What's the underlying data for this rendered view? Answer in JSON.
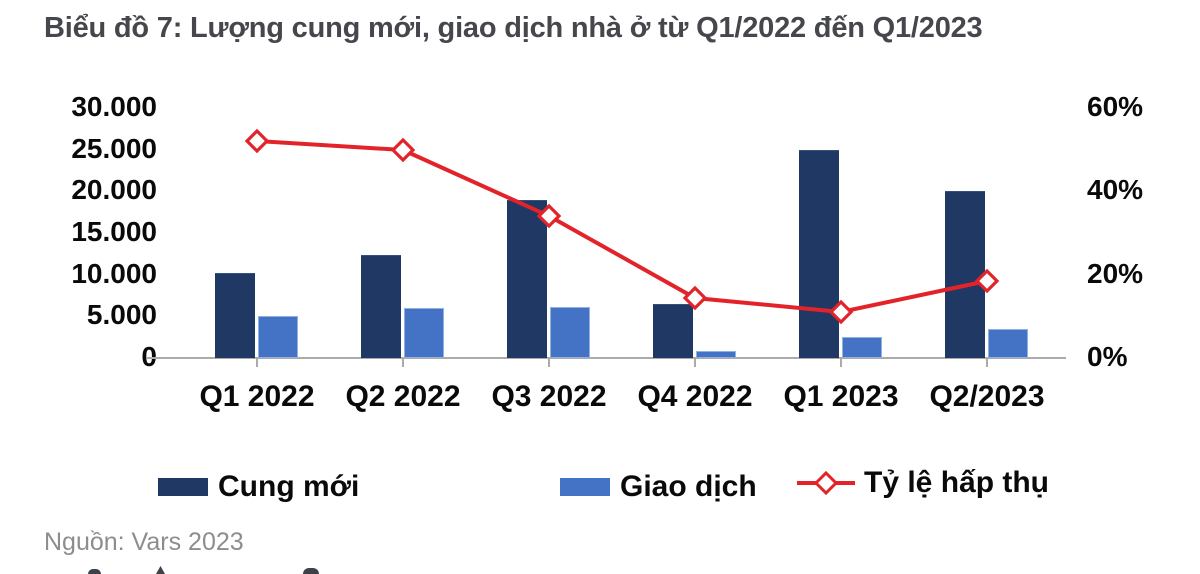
{
  "title": "Biểu đồ 7: Lượng cung mới, giao dịch nhà ở từ Q1/2022 đến Q1/2023",
  "source": "Nguồn: Vars 2023",
  "colors": {
    "supply_bar": "#203864",
    "transaction_bar": "#4472c4",
    "absorption_line": "#e2242a",
    "axis_line": "#ababab",
    "title_text": "#46474c",
    "source_text": "#8d8d8d"
  },
  "legend": [
    {
      "label": "Cung mới",
      "type": "bar",
      "color": "#203864"
    },
    {
      "label": "Giao dịch",
      "type": "bar",
      "color": "#4472c4"
    },
    {
      "label": "Tỷ lệ hấp thụ",
      "type": "line",
      "color": "#e2242a"
    }
  ],
  "chart_data": {
    "type": "bar",
    "subtype": "bar-line-combo",
    "title": "Biểu đồ 7: Lượng cung mới, giao dịch nhà ở từ Q1/2022 đến Q1/2023",
    "categories": [
      "Q1 2022",
      "Q2 2022",
      "Q3 2022",
      "Q4 2022",
      "Q1 2023",
      "Q2/2023"
    ],
    "series": [
      {
        "name": "Cung mới",
        "type": "bar",
        "axis": "left",
        "values": [
          10200,
          12300,
          19000,
          6500,
          25000,
          20000
        ]
      },
      {
        "name": "Giao dịch",
        "type": "bar",
        "axis": "left",
        "values": [
          5000,
          6000,
          6100,
          800,
          2500,
          3500
        ]
      },
      {
        "name": "Tỷ lệ hấp thụ",
        "type": "line",
        "axis": "right",
        "values": [
          52,
          50,
          34,
          14.5,
          11,
          18.5
        ]
      }
    ],
    "left_axis": {
      "min": 0,
      "max": 30000,
      "tick_labels": [
        "30.000",
        "25.000",
        "20.000",
        "15.000",
        "10.000",
        "5.000",
        "0"
      ]
    },
    "right_axis": {
      "min": 0,
      "max": 60,
      "tick_labels": [
        "60%",
        "40%",
        "20%",
        "0%"
      ]
    },
    "grid": false,
    "legend_position": "bottom"
  }
}
